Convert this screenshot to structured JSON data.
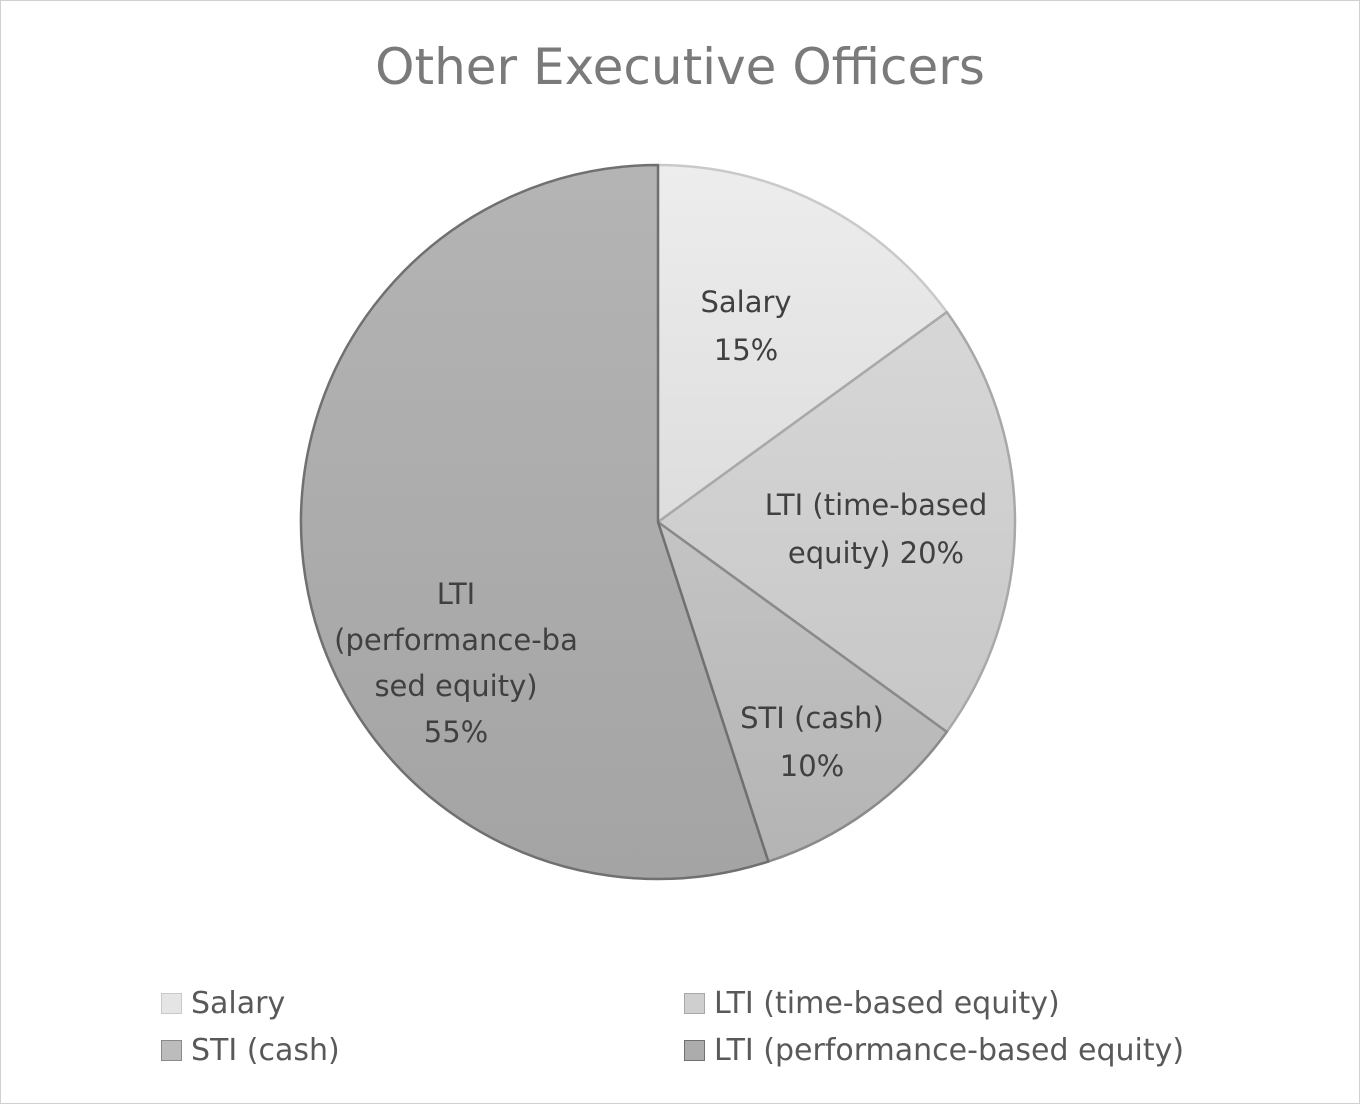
{
  "chart_data": {
    "type": "pie",
    "title": "Other Executive Officers",
    "slices": [
      {
        "name": "Salary",
        "value": 15,
        "label_lines": [
          "Salary",
          "15%"
        ],
        "fill": "#e5e5e5",
        "stroke": "#c9c9c9"
      },
      {
        "name": "LTI (time-based equity)",
        "value": 20,
        "label_lines": [
          "LTI (time-based",
          "equity) 20%"
        ],
        "fill": "#cfcfcf",
        "stroke": "#a8a8a8"
      },
      {
        "name": "STI (cash)",
        "value": 10,
        "label_lines": [
          "STI (cash)",
          "10%"
        ],
        "fill": "#bcbcbc",
        "stroke": "#8a8a8a"
      },
      {
        "name": "LTI (performance-based equity)",
        "value": 55,
        "label_lines": [
          "LTI",
          "(performance-ba",
          "sed equity)",
          "55%"
        ],
        "fill": "#acacac",
        "stroke": "#707070"
      }
    ],
    "legend": {
      "position": "bottom",
      "items": [
        "Salary",
        "LTI (time-based equity)",
        "STI (cash)",
        "LTI (performance-based equity)"
      ]
    }
  }
}
